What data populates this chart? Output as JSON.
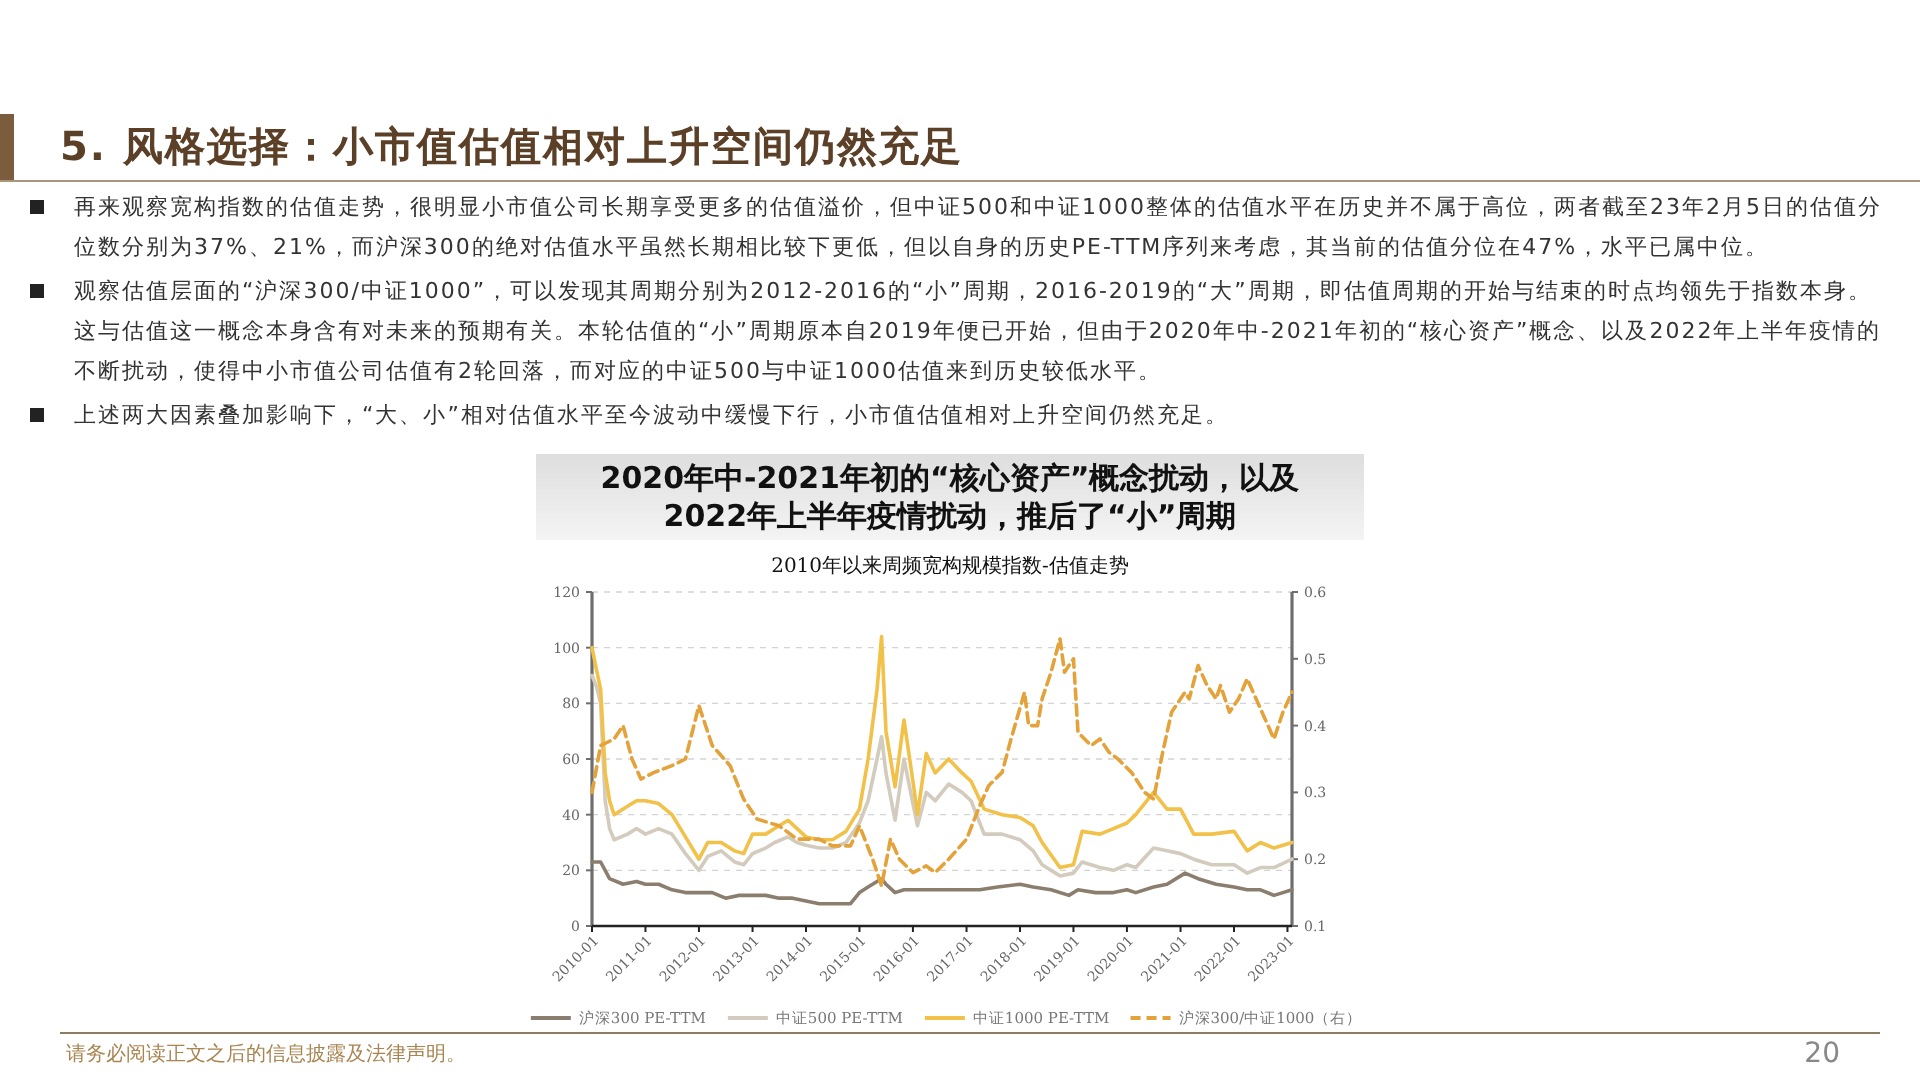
{
  "chart_data": {
    "type": "line",
    "title": "2010年以来周频宽构规模指数-估值走势",
    "subtitle": "2020年中-2021年初的“核心资产”概念扰动，以及2022年上半年疫情扰动，推后了“小”周期",
    "annotations": [
      "5. 风格选择：小市值估值相对上升空间仍然充足",
      "再来观察宽构指数的估值走势，很明显小市值公司长期享受更多的估值溢价，但中证500和中证1000整体的估值水平在历史并不属于高位，两者截至23年2月5日的估值分位数分别为37%、21%，而沪深300的绝对估值水平虽然长期相比较下更低，但以自身的历史PE-TTM序列来考虑，其当前的估值分位在47%，水平已属中位。",
      "观察估值层面的“沪深300/中证1000”，可以发现其周期分别为2012-2016的“小”周期，2016-2019的“大”周期，即估值周期的开始与结束的时点均领先于指数本身。这与估值这一概念本身含有对未来的预期有关。本轮估值的“小”周期原本自2019年便已开始，但由于2020年中-2021年初的“核心资产”概念、以及2022年上半年疫情的不断扰动，使得中小市值公司估值有2轮回落，而对应的中证500与中证1000估值来到历史较低水平。",
      "上述两大因素叠加影响下，“大、小”相对估值水平至今波动中缓慢下行，小市值估值相对上升空间仍然充足。",
      "请务必阅读正文之后的信息披露及法律声明。",
      "20"
    ],
    "xlim": [
      "2010-01",
      "2023-02"
    ],
    "xticks": [
      "2010-01",
      "2011-01",
      "2012-01",
      "2013-01",
      "2014-01",
      "2015-01",
      "2016-01",
      "2017-01",
      "2018-01",
      "2019-01",
      "2020-01",
      "2021-01",
      "2022-01",
      "2023-01"
    ],
    "ylim": [
      0,
      120
    ],
    "yticks": [
      0,
      20,
      40,
      60,
      80,
      100,
      120
    ],
    "y2lim": [
      0.1,
      0.6
    ],
    "y2ticks": [
      0.1,
      0.2,
      0.3,
      0.4,
      0.5,
      0.6
    ],
    "grid": "y",
    "legend": "bottom",
    "series": [
      {
        "name": "沪深300 PE-TTM",
        "color": "#8c7e6e",
        "x": [
          "2010-01",
          "2010-03",
          "2010-05",
          "2010-08",
          "2010-11",
          "2011-01",
          "2011-04",
          "2011-07",
          "2011-10",
          "2012-01",
          "2012-04",
          "2012-07",
          "2012-10",
          "2013-01",
          "2013-04",
          "2013-07",
          "2013-10",
          "2014-01",
          "2014-04",
          "2014-06",
          "2014-09",
          "2014-11",
          "2015-01",
          "2015-03",
          "2015-05",
          "2015-06",
          "2015-07",
          "2015-09",
          "2015-11",
          "2016-01",
          "2016-04",
          "2016-08",
          "2016-12",
          "2017-04",
          "2017-08",
          "2018-01",
          "2018-04",
          "2018-08",
          "2018-12",
          "2019-02",
          "2019-06",
          "2019-10",
          "2020-01",
          "2020-03",
          "2020-07",
          "2020-10",
          "2021-02",
          "2021-05",
          "2021-09",
          "2022-01",
          "2022-04",
          "2022-07",
          "2022-10",
          "2022-12",
          "2023-02"
        ],
        "values": [
          23,
          23,
          17,
          15,
          16,
          15,
          15,
          13,
          12,
          12,
          12,
          10,
          11,
          11,
          11,
          10,
          10,
          9,
          8,
          8,
          8,
          8,
          12,
          14,
          16,
          17,
          15,
          12,
          13,
          13,
          13,
          13,
          13,
          13,
          14,
          15,
          14,
          13,
          11,
          13,
          12,
          12,
          13,
          12,
          14,
          15,
          19,
          17,
          15,
          14,
          13,
          13,
          11,
          12,
          13
        ]
      },
      {
        "name": "中证500 PE-TTM",
        "color": "#d3cbbd",
        "x": [
          "2010-01",
          "2010-02",
          "2010-03",
          "2010-04",
          "2010-05",
          "2010-06",
          "2010-09",
          "2010-11",
          "2011-01",
          "2011-04",
          "2011-07",
          "2011-10",
          "2012-01",
          "2012-03",
          "2012-06",
          "2012-09",
          "2012-11",
          "2013-01",
          "2013-04",
          "2013-06",
          "2013-09",
          "2013-11",
          "2014-01",
          "2014-04",
          "2014-07",
          "2014-10",
          "2015-01",
          "2015-03",
          "2015-05",
          "2015-06",
          "2015-07",
          "2015-09",
          "2015-11",
          "2016-01",
          "2016-02",
          "2016-04",
          "2016-06",
          "2016-09",
          "2016-12",
          "2017-02",
          "2017-05",
          "2017-09",
          "2018-01",
          "2018-04",
          "2018-06",
          "2018-10",
          "2019-01",
          "2019-03",
          "2019-07",
          "2019-10",
          "2020-01",
          "2020-03",
          "2020-07",
          "2020-10",
          "2021-01",
          "2021-04",
          "2021-08",
          "2022-01",
          "2022-04",
          "2022-07",
          "2022-10",
          "2023-02"
        ],
        "values": [
          90,
          86,
          80,
          45,
          35,
          31,
          33,
          35,
          33,
          35,
          33,
          26,
          20,
          25,
          27,
          23,
          22,
          26,
          28,
          30,
          32,
          30,
          29,
          28,
          28,
          30,
          37,
          45,
          60,
          68,
          55,
          38,
          60,
          44,
          36,
          48,
          45,
          51,
          48,
          45,
          33,
          33,
          31,
          27,
          22,
          18,
          19,
          23,
          21,
          20,
          22,
          21,
          28,
          27,
          26,
          24,
          22,
          22,
          19,
          21,
          21,
          24
        ]
      },
      {
        "name": "中证1000 PE-TTM",
        "color": "#f2c14a",
        "x": [
          "2010-01",
          "2010-02",
          "2010-03",
          "2010-04",
          "2010-05",
          "2010-06",
          "2010-09",
          "2010-11",
          "2011-01",
          "2011-04",
          "2011-07",
          "2011-10",
          "2012-01",
          "2012-03",
          "2012-06",
          "2012-09",
          "2012-11",
          "2013-01",
          "2013-04",
          "2013-06",
          "2013-09",
          "2013-11",
          "2014-01",
          "2014-04",
          "2014-07",
          "2014-10",
          "2015-01",
          "2015-03",
          "2015-05",
          "2015-06",
          "2015-07",
          "2015-09",
          "2015-11",
          "2016-01",
          "2016-02",
          "2016-04",
          "2016-06",
          "2016-09",
          "2016-12",
          "2017-02",
          "2017-05",
          "2017-09",
          "2018-01",
          "2018-04",
          "2018-06",
          "2018-10",
          "2019-01",
          "2019-03",
          "2019-07",
          "2019-10",
          "2020-01",
          "2020-03",
          "2020-07",
          "2020-10",
          "2021-01",
          "2021-04",
          "2021-08",
          "2022-01",
          "2022-04",
          "2022-07",
          "2022-10",
          "2023-02"
        ],
        "values": [
          100,
          92,
          85,
          55,
          45,
          40,
          43,
          45,
          45,
          44,
          40,
          32,
          24,
          30,
          30,
          27,
          26,
          33,
          33,
          35,
          38,
          35,
          32,
          31,
          31,
          34,
          42,
          60,
          85,
          104,
          70,
          50,
          74,
          52,
          40,
          62,
          55,
          60,
          55,
          52,
          42,
          40,
          39,
          36,
          30,
          21,
          22,
          34,
          33,
          35,
          37,
          40,
          48,
          42,
          42,
          33,
          33,
          34,
          27,
          30,
          28,
          30
        ]
      },
      {
        "name": "沪深300/中证1000（右）",
        "color": "#e4a23a",
        "axis": "y2",
        "line_style": "dashed",
        "x": [
          "2010-01",
          "2010-03",
          "2010-06",
          "2010-08",
          "2010-10",
          "2010-12",
          "2011-03",
          "2011-07",
          "2011-10",
          "2012-01",
          "2012-04",
          "2012-08",
          "2012-11",
          "2013-02",
          "2013-07",
          "2013-11",
          "2014-04",
          "2014-07",
          "2014-11",
          "2015-01",
          "2015-04",
          "2015-06",
          "2015-08",
          "2015-10",
          "2016-01",
          "2016-04",
          "2016-06",
          "2016-09",
          "2017-01",
          "2017-04",
          "2017-06",
          "2017-09",
          "2017-11",
          "2018-02",
          "2018-03",
          "2018-05",
          "2018-06",
          "2018-08",
          "2018-10",
          "2018-11",
          "2019-01",
          "2019-02",
          "2019-05",
          "2019-07",
          "2019-09",
          "2019-11",
          "2020-02",
          "2020-05",
          "2020-07",
          "2020-09",
          "2020-11",
          "2021-02",
          "2021-03",
          "2021-05",
          "2021-07",
          "2021-09",
          "2021-10",
          "2021-12",
          "2022-02",
          "2022-04",
          "2022-06",
          "2022-08",
          "2022-10",
          "2022-12",
          "2023-02"
        ],
        "values": [
          0.3,
          0.37,
          0.38,
          0.4,
          0.35,
          0.32,
          0.33,
          0.34,
          0.35,
          0.43,
          0.37,
          0.34,
          0.29,
          0.26,
          0.25,
          0.23,
          0.23,
          0.22,
          0.22,
          0.25,
          0.2,
          0.16,
          0.23,
          0.2,
          0.18,
          0.19,
          0.18,
          0.2,
          0.23,
          0.28,
          0.31,
          0.33,
          0.38,
          0.45,
          0.4,
          0.4,
          0.44,
          0.48,
          0.53,
          0.48,
          0.5,
          0.39,
          0.37,
          0.38,
          0.36,
          0.35,
          0.33,
          0.3,
          0.29,
          0.36,
          0.42,
          0.45,
          0.44,
          0.49,
          0.46,
          0.44,
          0.46,
          0.42,
          0.44,
          0.47,
          0.44,
          0.41,
          0.38,
          0.42,
          0.45
        ]
      }
    ]
  }
}
